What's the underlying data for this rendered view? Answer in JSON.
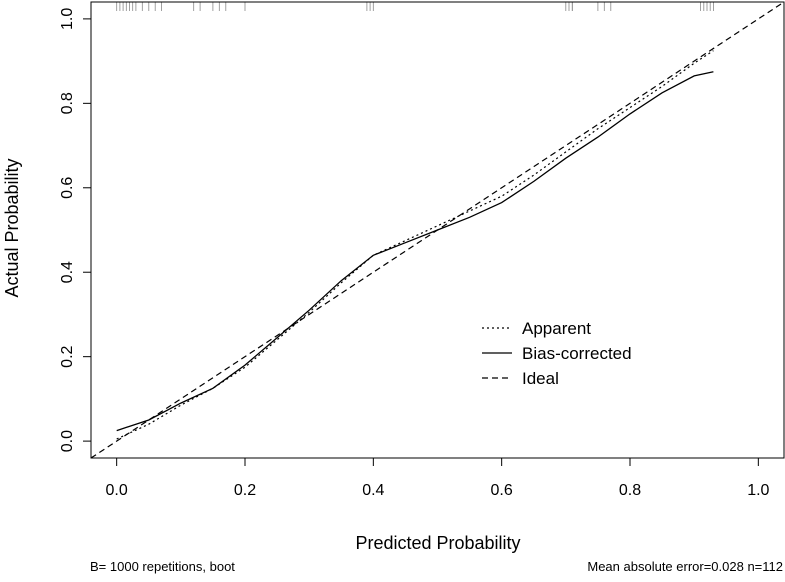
{
  "chart_data": {
    "type": "line",
    "title": "",
    "xlabel": "Predicted Probability",
    "ylabel": "Actual Probability",
    "xlim": [
      -0.04,
      1.04
    ],
    "ylim": [
      -0.04,
      1.04
    ],
    "x_ticks": [
      {
        "value": 0.0,
        "label": "0.0"
      },
      {
        "value": 0.2,
        "label": "0.2"
      },
      {
        "value": 0.4,
        "label": "0.4"
      },
      {
        "value": 0.6,
        "label": "0.6"
      },
      {
        "value": 0.8,
        "label": "0.8"
      },
      {
        "value": 1.0,
        "label": "1.0"
      }
    ],
    "y_ticks": [
      {
        "value": 0.0,
        "label": "0.0"
      },
      {
        "value": 0.2,
        "label": "0.2"
      },
      {
        "value": 0.4,
        "label": "0.4"
      },
      {
        "value": 0.6,
        "label": "0.6"
      },
      {
        "value": 0.8,
        "label": "0.8"
      },
      {
        "value": 1.0,
        "label": "1.0"
      }
    ],
    "grid": false,
    "legend_position": "right-center",
    "series": [
      {
        "name": "Apparent",
        "style": "dotted",
        "color": "#000000",
        "x": [
          0.0,
          0.05,
          0.1,
          0.15,
          0.2,
          0.25,
          0.3,
          0.35,
          0.4,
          0.45,
          0.5,
          0.55,
          0.6,
          0.65,
          0.7,
          0.75,
          0.8,
          0.85,
          0.9,
          0.93
        ],
        "y": [
          0.005,
          0.04,
          0.085,
          0.125,
          0.175,
          0.24,
          0.305,
          0.375,
          0.44,
          0.475,
          0.51,
          0.545,
          0.58,
          0.63,
          0.685,
          0.74,
          0.79,
          0.84,
          0.895,
          0.925
        ]
      },
      {
        "name": "Bias-corrected",
        "style": "solid",
        "color": "#000000",
        "x": [
          0.0,
          0.05,
          0.1,
          0.15,
          0.2,
          0.25,
          0.3,
          0.35,
          0.4,
          0.45,
          0.5,
          0.55,
          0.6,
          0.65,
          0.7,
          0.75,
          0.8,
          0.85,
          0.9,
          0.93
        ],
        "y": [
          0.025,
          0.05,
          0.09,
          0.125,
          0.18,
          0.245,
          0.31,
          0.38,
          0.44,
          0.47,
          0.5,
          0.53,
          0.565,
          0.615,
          0.67,
          0.72,
          0.775,
          0.825,
          0.865,
          0.875
        ]
      },
      {
        "name": "Ideal",
        "style": "dashed",
        "color": "#000000",
        "x": [
          -0.04,
          1.04
        ],
        "y": [
          -0.04,
          1.04
        ]
      }
    ],
    "rug_x": [
      0.0,
      0.005,
      0.01,
      0.015,
      0.02,
      0.025,
      0.03,
      0.04,
      0.05,
      0.06,
      0.07,
      0.12,
      0.13,
      0.15,
      0.16,
      0.17,
      0.2,
      0.39,
      0.395,
      0.4,
      0.7,
      0.705,
      0.71,
      0.71,
      0.75,
      0.76,
      0.77,
      0.91,
      0.915,
      0.92,
      0.925,
      0.93
    ],
    "footer_left": "B= 1000 repetitions, boot",
    "footer_right": "Mean absolute error=0.028 n=112"
  }
}
